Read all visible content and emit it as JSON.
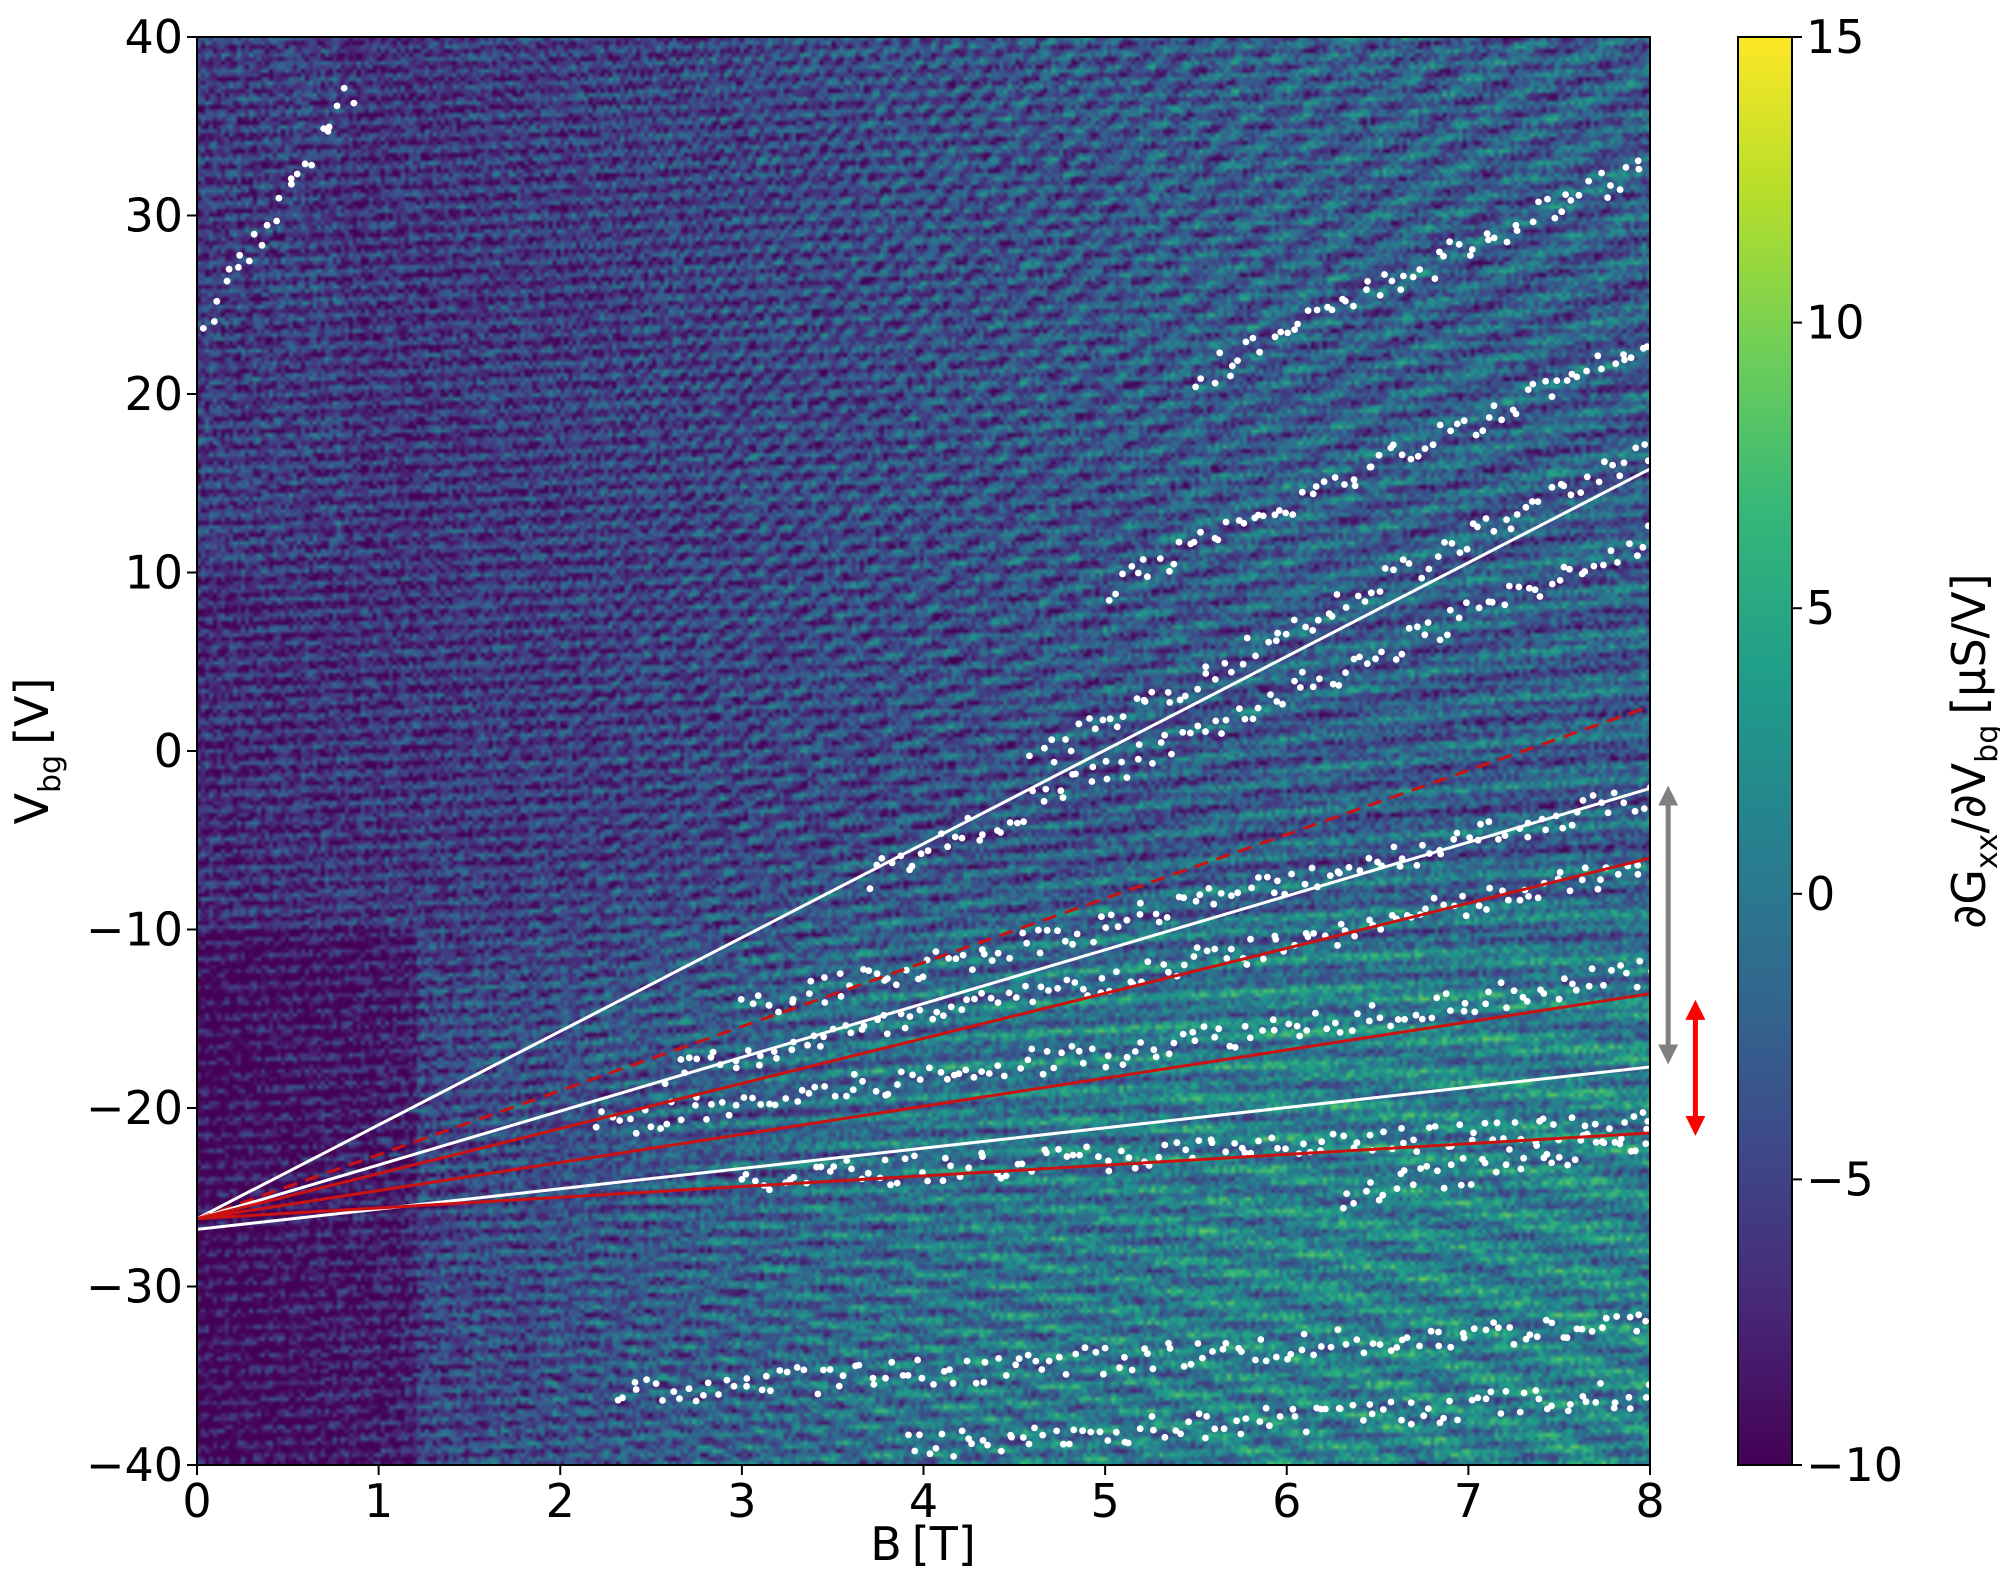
{
  "chart_data": {
    "type": "heatmap",
    "xlabel": {
      "main": "B",
      "unit": "[T]"
    },
    "ylabel": {
      "main": "V",
      "sub": "bg",
      "unit": "[V]"
    },
    "xlim": [
      0,
      8
    ],
    "ylim": [
      -40,
      40
    ],
    "x_ticks": [
      "0",
      "1",
      "2",
      "3",
      "4",
      "5",
      "6",
      "7",
      "8"
    ],
    "y_ticks": [
      "−40",
      "−30",
      "−20",
      "−10",
      "0",
      "10",
      "20",
      "30",
      "40"
    ],
    "colorbar": {
      "label": {
        "d1": "∂G",
        "s1": "xx",
        "mid": "/∂V",
        "s2": "bg",
        "unit": "[μS/V]"
      },
      "range": [
        -10,
        15
      ],
      "ticks": [
        "−10",
        "−5",
        "0",
        "5",
        "10",
        "15"
      ],
      "colormap": "viridis",
      "stops": [
        "#440154",
        "#482878",
        "#3e4989",
        "#31688e",
        "#26828e",
        "#1f9e89",
        "#35b779",
        "#6ece58",
        "#b5de2b",
        "#fde725"
      ]
    },
    "fan_lines": [
      {
        "color": "#ffffff",
        "style": "solid",
        "x": [
          0,
          8
        ],
        "y": [
          -26.2,
          15.8
        ]
      },
      {
        "color": "#cc1111",
        "style": "dashed",
        "x": [
          0,
          8
        ],
        "y": [
          -26.2,
          2.5
        ]
      },
      {
        "color": "#ffffff",
        "style": "solid",
        "x": [
          0,
          8
        ],
        "y": [
          -26.2,
          -2.1
        ]
      },
      {
        "color": "#cc1111",
        "style": "solid",
        "x": [
          0,
          8
        ],
        "y": [
          -26.2,
          -6.0
        ]
      },
      {
        "color": "#cc1111",
        "style": "solid",
        "x": [
          0,
          8
        ],
        "y": [
          -26.2,
          -13.6
        ]
      },
      {
        "color": "#ffffff",
        "style": "solid",
        "x": [
          0,
          8
        ],
        "y": [
          -26.8,
          -17.7
        ]
      },
      {
        "color": "#cc1111",
        "style": "solid",
        "x": [
          0,
          8
        ],
        "y": [
          -26.2,
          -21.4
        ]
      }
    ],
    "arrows": [
      {
        "color": "#808080",
        "x": 8.1,
        "y": [
          -2.5,
          -17.0
        ]
      },
      {
        "color": "#ff0000",
        "x": 8.25,
        "y": [
          -14.5,
          -21.0
        ]
      }
    ],
    "marker_tracks": [
      {
        "x": [
          3.7,
          8.0
        ],
        "y": [
          -7.0,
          12.0
        ]
      },
      {
        "x": [
          3.0,
          8.0
        ],
        "y": [
          -14.5,
          -2.5
        ]
      },
      {
        "x": [
          2.6,
          8.0
        ],
        "y": [
          -18.0,
          -6.5
        ]
      },
      {
        "x": [
          2.2,
          8.0
        ],
        "y": [
          -21.0,
          -12.5
        ]
      },
      {
        "x": [
          3.0,
          8.0
        ],
        "y": [
          -24.0,
          -21.0
        ]
      },
      {
        "x": [
          4.6,
          8.0
        ],
        "y": [
          -0.5,
          17.0
        ]
      },
      {
        "x": [
          5.0,
          8.0
        ],
        "y": [
          9.0,
          23.0
        ]
      },
      {
        "x": [
          5.5,
          8.0
        ],
        "y": [
          21.0,
          33.0
        ]
      },
      {
        "x": [
          6.3,
          8.0
        ],
        "y": [
          -25.0,
          -21.5
        ]
      },
      {
        "x": [
          2.3,
          8.0
        ],
        "y": [
          -36.0,
          -32.0
        ]
      },
      {
        "x": [
          3.9,
          8.0
        ],
        "y": [
          -39.0,
          -36.0
        ]
      },
      {
        "x": [
          0.05,
          0.85
        ],
        "y": [
          24.0,
          37.0
        ]
      }
    ]
  }
}
